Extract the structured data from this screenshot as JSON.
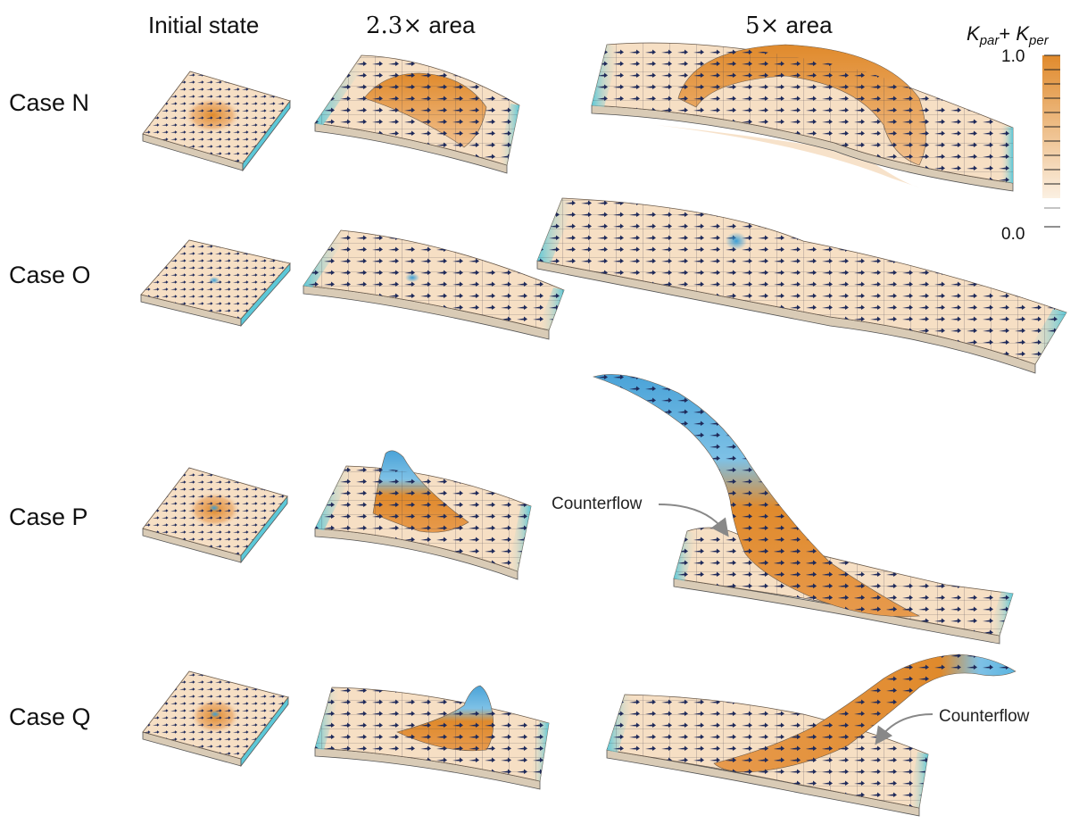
{
  "columns": [
    {
      "title": "Initial state"
    },
    {
      "title_math": "2.3×",
      "title_text": " area"
    },
    {
      "title_math": "5×",
      "title_text": " area"
    }
  ],
  "rows": [
    {
      "label": "Case N"
    },
    {
      "label": "Case O"
    },
    {
      "label": "Case P"
    },
    {
      "label": "Case Q"
    }
  ],
  "colorbar": {
    "title_base_1": "K",
    "title_sub_1": "par",
    "title_plus": "+ ",
    "title_base_2": "K",
    "title_sub_2": "per",
    "max_label": "1.0",
    "min_label": "0.0",
    "color_high": "#e08a2c",
    "color_low": "#f7e4cc",
    "color_negative": "#4aa3d8"
  },
  "annotations": {
    "counterflow_p": "Counterflow",
    "counterflow_q": "Counterflow"
  },
  "colors": {
    "sheet_base": "#f6dfc4",
    "bulge_orange": "#e08a2c",
    "edge_cyan": "#5cc8d8",
    "arrow_navy": "#1f2a5a"
  }
}
